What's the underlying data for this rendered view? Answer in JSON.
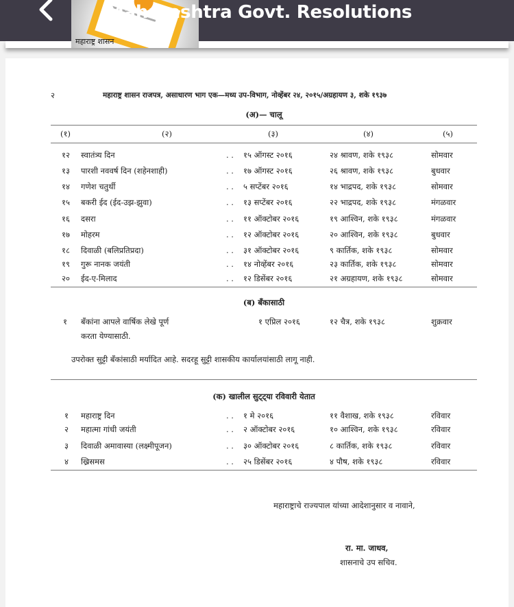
{
  "app_bar": {
    "title": "Maharashtra Govt. Resolutions",
    "back_icon": "chevron-left-icon",
    "logo_text": "महाराष्ट्र शासन",
    "colors": {
      "bar": "#3e3b47",
      "logo_accent": "#f5b323"
    }
  },
  "document": {
    "page_number": "२",
    "header": "महाराष्ट्र शासन राजपत्र, असाधारण भाग एक—मध्य उप-विभाग, नोव्हेंबर २४, २०१५/अग्रहायण ३, शके १९३७",
    "section_a": {
      "title": "(अ)— चालू",
      "columns": [
        "(१)",
        "(२)",
        "(३)",
        "(४)",
        "(५)"
      ],
      "rows": [
        {
          "no": "१२",
          "name": "स्वातंत्र्य दिन",
          "sep": ". .",
          "date": "१५ ऑगस्ट २०१६",
          "saka": "२४ श्रावण, शके १९३८",
          "day": "सोमवार"
        },
        {
          "no": "१३",
          "name": "पारशी नववर्ष दिन (शहेनशाही)",
          "sep": ". .",
          "date": "१७ ऑगस्ट २०१६",
          "saka": "२६ श्रावण, शके १९३८",
          "day": "बुधवार"
        },
        {
          "no": "१४",
          "name": "गणेश चतुर्थी",
          "sep": ". .",
          "date": "५ सप्टेंबर २०१६",
          "saka": "१४ भाद्रपद, शके १९३८",
          "day": "सोमवार"
        },
        {
          "no": "१५",
          "name": "बकरी ईद (ईद-उझ-झुवा)",
          "sep": ". .",
          "date": "१३ सप्टेंबर २०१६",
          "saka": "२२ भाद्रपद, शके १९३८",
          "day": "मंगळवार"
        },
        {
          "no": "१६",
          "name": "दसरा",
          "sep": ". .",
          "date": "११ ऑक्टोबर २०१६",
          "saka": "१९ आश्विन, शके १९३८",
          "day": "मंगळवार"
        },
        {
          "no": "१७",
          "name": "मोहरम",
          "sep": ". .",
          "date": "१२ ऑक्टोबर २०१६",
          "saka": "२० आश्विन, शके १९३८",
          "day": "बुधवार"
        },
        {
          "no": "१८",
          "name": "दिवाळी (बलिप्रतिप्रदा)",
          "sep": ". .",
          "date": "३१ ऑक्टोबर २०१६",
          "saka": "९ कार्तिक, शके १९३८",
          "day": "सोमवार"
        },
        {
          "no": "१९",
          "name": "गुरू नानक जयंती",
          "sep": ". .",
          "date": "१४ नोव्हेंबर २०१६",
          "saka": "२३ कार्तिक, शके १९३८",
          "day": "सोमवार"
        },
        {
          "no": "२०",
          "name": "ईद-ए-मिलाद",
          "sep": ". .",
          "date": "१२ डिसेंबर २०१६",
          "saka": "२१ अग्रहायण, शके १९३८",
          "day": "सोमवार"
        }
      ]
    },
    "section_b": {
      "title": "(ब) बँकासाठी",
      "row": {
        "no": "१",
        "name_line1": "बँकांना आपले वार्षिक लेखे पूर्ण",
        "name_line2": "करता येण्यासाठी.",
        "date": "१ एप्रिल २०१६",
        "saka": "१२ चैत्र, शके १९३८",
        "day": "शुक्रवार"
      },
      "note": "उपरोक्त सुट्टी बँकांसाठी मर्यादित आहे. सदरहू सुट्टी शासकीय कार्यालयांसाठी लागू नाही."
    },
    "section_c": {
      "title": "(क) खालील सुट्ट्या रविवारी येतात",
      "rows": [
        {
          "no": "१",
          "name": "महाराष्ट्र दिन",
          "sep": ". .",
          "date": "१ मे २०१६",
          "saka": "११ वैशाख, शके १९३८",
          "day": "रविवार"
        },
        {
          "no": "२",
          "name": "महात्मा गांधी जयंती",
          "sep": ". .",
          "date": "२ ऑक्टोबर २०१६",
          "saka": "१० आश्विन, शके १९३८",
          "day": "रविवार"
        },
        {
          "no": "३",
          "name": "दिवाळी अमावास्या (लक्ष्मीपूजन)",
          "sep": ". .",
          "date": "३० ऑक्टोबर २०१६",
          "saka": "८ कार्तिक, शके १९३८",
          "day": "रविवार"
        },
        {
          "no": "४",
          "name": "ख्रिसमस",
          "sep": ". .",
          "date": "२५ डिसेंबर २०१६",
          "saka": "४ पौष, शके १९३८",
          "day": "रविवार"
        }
      ]
    },
    "signature": {
      "order": "महाराष्ट्राचे राज्यपाल यांच्या आदेशानुसार व नावाने,",
      "name": "रा. मा. जाधव,",
      "designation": "शासनाचे उप सचिव."
    }
  }
}
